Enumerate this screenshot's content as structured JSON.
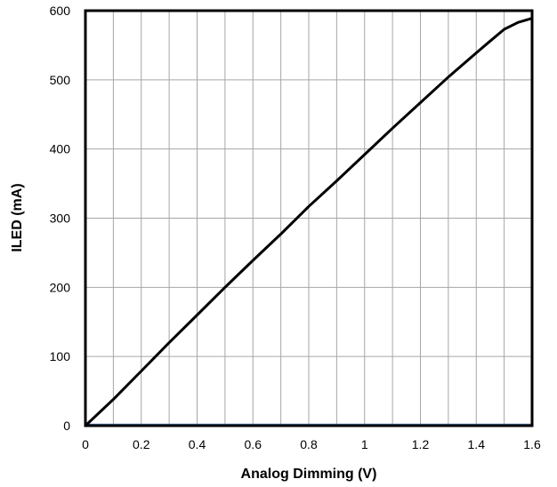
{
  "chart_data": {
    "type": "line",
    "title": "",
    "xlabel": "Analog Dimming (V)",
    "ylabel": "ILED (mA)",
    "xlim": [
      0,
      1.6
    ],
    "ylim": [
      0,
      600
    ],
    "x_ticks": [
      0,
      0.2,
      0.4,
      0.6,
      0.8,
      1,
      1.2,
      1.4,
      1.6
    ],
    "x_tick_labels": [
      "0",
      "0.2",
      "0.4",
      "0.6",
      "0.8",
      "1",
      "1.2",
      "1.4",
      "1.6"
    ],
    "y_ticks": [
      0,
      100,
      200,
      300,
      400,
      500,
      600
    ],
    "y_tick_labels": [
      "0",
      "100",
      "200",
      "300",
      "400",
      "500",
      "600"
    ],
    "grid": true,
    "x_minor_gridlines": 16,
    "legend": "none",
    "series": [
      {
        "color": "#000000",
        "x": [
          0,
          0.1,
          0.2,
          0.3,
          0.4,
          0.5,
          0.6,
          0.7,
          0.8,
          0.9,
          1.0,
          1.1,
          1.2,
          1.3,
          1.4,
          1.45,
          1.5,
          1.55,
          1.6
        ],
        "y": [
          0,
          38,
          79,
          120,
          160,
          200,
          239,
          277,
          317,
          354,
          392,
          430,
          467,
          504,
          539,
          556,
          573,
          583,
          589
        ]
      }
    ],
    "baseline_color": "#4a7ebb"
  }
}
